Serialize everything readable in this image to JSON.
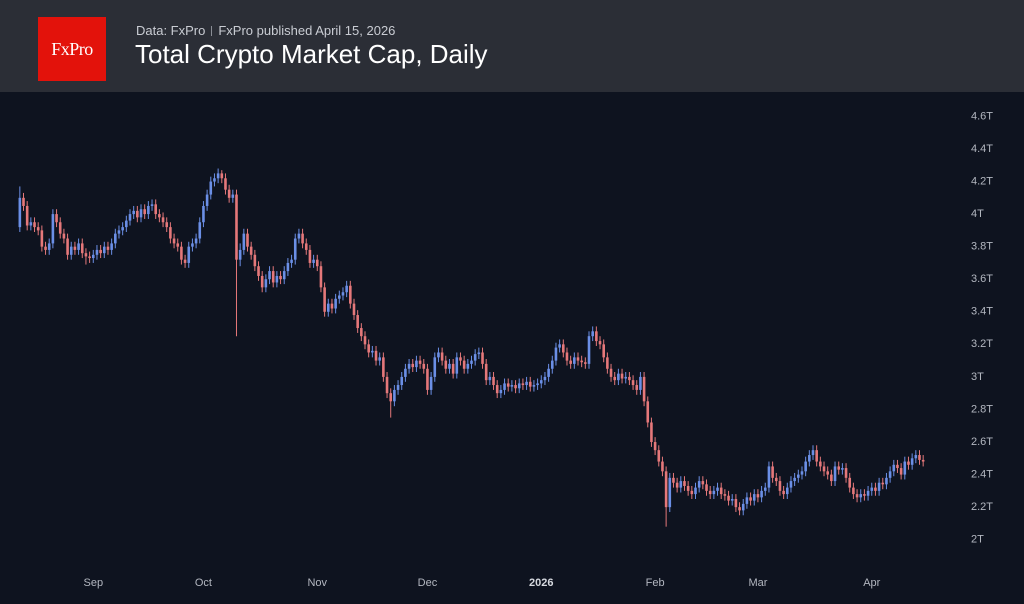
{
  "header": {
    "logo": "FxPro",
    "source": "Data: FxPro",
    "published": "FxPro published April 15, 2026",
    "title": "Total Crypto Market Cap, Daily"
  },
  "chart_data": {
    "type": "candlestick",
    "categories": [
      null,
      null,
      null,
      null,
      null,
      null,
      null,
      null,
      null,
      null,
      null,
      null,
      null,
      null,
      null,
      null,
      null,
      null,
      null,
      null,
      "Sep",
      null,
      null,
      null,
      null,
      null,
      null,
      null,
      null,
      null,
      null,
      null,
      null,
      null,
      null,
      null,
      null,
      null,
      null,
      null,
      null,
      null,
      null,
      null,
      null,
      null,
      null,
      null,
      null,
      null,
      "Oct",
      null,
      null,
      null,
      null,
      null,
      null,
      null,
      null,
      null,
      null,
      null,
      null,
      null,
      null,
      null,
      null,
      null,
      null,
      null,
      null,
      null,
      null,
      null,
      null,
      null,
      null,
      null,
      null,
      null,
      null,
      "Nov",
      null,
      null,
      null,
      null,
      null,
      null,
      null,
      null,
      null,
      null,
      null,
      null,
      null,
      null,
      null,
      null,
      null,
      null,
      null,
      null,
      null,
      null,
      null,
      null,
      null,
      null,
      null,
      null,
      null,
      "Dec",
      null,
      null,
      null,
      null,
      null,
      null,
      null,
      null,
      null,
      null,
      null,
      null,
      null,
      null,
      null,
      null,
      null,
      null,
      null,
      null,
      null,
      null,
      null,
      null,
      null,
      null,
      null,
      null,
      null,
      null,
      "2026",
      null,
      null,
      null,
      null,
      null,
      null,
      null,
      null,
      null,
      null,
      null,
      null,
      null,
      null,
      null,
      null,
      null,
      null,
      null,
      null,
      null,
      null,
      null,
      null,
      null,
      null,
      null,
      null,
      null,
      null,
      "Feb",
      null,
      null,
      null,
      null,
      null,
      null,
      null,
      null,
      null,
      null,
      null,
      null,
      null,
      null,
      null,
      null,
      null,
      null,
      null,
      null,
      null,
      null,
      null,
      null,
      null,
      null,
      null,
      "Mar",
      null,
      null,
      null,
      null,
      null,
      null,
      null,
      null,
      null,
      null,
      null,
      null,
      null,
      null,
      null,
      null,
      null,
      null,
      null,
      null,
      null,
      null,
      null,
      null,
      null,
      null,
      null,
      null,
      null,
      null,
      "Apr",
      null,
      null,
      null,
      null,
      null,
      null,
      null,
      null,
      null,
      null,
      null,
      null,
      null,
      null
    ],
    "open": [
      3.92,
      4.1,
      4.05,
      3.93,
      3.95,
      3.92,
      3.9,
      3.8,
      3.78,
      3.82,
      4.0,
      3.95,
      3.88,
      3.85,
      3.75,
      3.8,
      3.78,
      3.82,
      3.76,
      3.74,
      3.73,
      3.75,
      3.78,
      3.76,
      3.8,
      3.78,
      3.82,
      3.88,
      3.9,
      3.92,
      3.96,
      4.0,
      4.02,
      3.98,
      4.03,
      4.0,
      4.05,
      4.06,
      4.0,
      3.98,
      3.95,
      3.92,
      3.85,
      3.82,
      3.8,
      3.72,
      3.7,
      3.8,
      3.82,
      3.85,
      3.95,
      4.05,
      4.12,
      4.2,
      4.22,
      4.25,
      4.22,
      4.15,
      4.1,
      4.12,
      3.72,
      3.78,
      3.88,
      3.8,
      3.75,
      3.68,
      3.62,
      3.55,
      3.6,
      3.65,
      3.58,
      3.62,
      3.6,
      3.65,
      3.7,
      3.72,
      3.85,
      3.88,
      3.82,
      3.78,
      3.7,
      3.72,
      3.68,
      3.55,
      3.4,
      3.45,
      3.42,
      3.48,
      3.5,
      3.52,
      3.56,
      3.45,
      3.38,
      3.3,
      3.25,
      3.2,
      3.15,
      3.16,
      3.1,
      3.12,
      3.0,
      2.9,
      2.85,
      2.92,
      2.95,
      3.0,
      3.05,
      3.08,
      3.06,
      3.1,
      3.08,
      3.05,
      2.92,
      3.0,
      3.12,
      3.15,
      3.1,
      3.05,
      3.08,
      3.02,
      3.12,
      3.1,
      3.05,
      3.08,
      3.1,
      3.14,
      3.15,
      3.08,
      2.98,
      3.0,
      2.95,
      2.9,
      2.92,
      2.96,
      2.94,
      2.95,
      2.93,
      2.96,
      2.95,
      2.97,
      2.94,
      2.95,
      2.96,
      2.98,
      3.0,
      3.05,
      3.1,
      3.18,
      3.2,
      3.15,
      3.1,
      3.08,
      3.12,
      3.1,
      3.09,
      3.08,
      3.25,
      3.28,
      3.22,
      3.2,
      3.12,
      3.05,
      3.0,
      2.98,
      3.02,
      2.99,
      3.0,
      2.98,
      2.95,
      2.92,
      3.0,
      2.85,
      2.72,
      2.6,
      2.55,
      2.48,
      2.42,
      2.2,
      2.38,
      2.35,
      2.32,
      2.36,
      2.33,
      2.3,
      2.28,
      2.32,
      2.36,
      2.34,
      2.3,
      2.28,
      2.3,
      2.32,
      2.28,
      2.27,
      2.24,
      2.25,
      2.2,
      2.18,
      2.22,
      2.26,
      2.24,
      2.28,
      2.26,
      2.3,
      2.32,
      2.45,
      2.38,
      2.36,
      2.3,
      2.28,
      2.32,
      2.36,
      2.38,
      2.4,
      2.42,
      2.48,
      2.52,
      2.55,
      2.48,
      2.45,
      2.42,
      2.4,
      2.36,
      2.45,
      2.43,
      2.44,
      2.38,
      2.32,
      2.28,
      2.26,
      2.28,
      2.27,
      2.3,
      2.32,
      2.3,
      2.35,
      2.34,
      2.38,
      2.42,
      2.46,
      2.44,
      2.4,
      2.48,
      2.46,
      2.5,
      2.52,
      2.49
    ],
    "high": [
      4.17,
      4.13,
      4.08,
      3.98,
      3.98,
      3.95,
      3.93,
      3.83,
      3.85,
      4.03,
      4.03,
      3.98,
      3.91,
      3.88,
      3.83,
      3.83,
      3.85,
      3.85,
      3.79,
      3.77,
      3.78,
      3.81,
      3.81,
      3.83,
      3.83,
      3.85,
      3.91,
      3.93,
      3.95,
      3.99,
      4.03,
      4.05,
      4.05,
      4.06,
      4.06,
      4.08,
      4.09,
      4.09,
      4.03,
      4.01,
      3.98,
      3.95,
      3.88,
      3.85,
      3.83,
      3.75,
      3.83,
      3.85,
      3.88,
      3.98,
      4.08,
      4.15,
      4.23,
      4.25,
      4.28,
      4.27,
      4.25,
      4.18,
      4.15,
      4.15,
      3.82,
      3.91,
      3.91,
      3.83,
      3.78,
      3.71,
      3.65,
      3.63,
      3.68,
      3.68,
      3.65,
      3.65,
      3.68,
      3.73,
      3.75,
      3.88,
      3.91,
      3.91,
      3.85,
      3.81,
      3.75,
      3.75,
      3.71,
      3.58,
      3.48,
      3.48,
      3.51,
      3.53,
      3.55,
      3.59,
      3.59,
      3.48,
      3.41,
      3.33,
      3.28,
      3.23,
      3.19,
      3.19,
      3.15,
      3.15,
      3.03,
      2.93,
      2.95,
      2.98,
      3.03,
      3.08,
      3.11,
      3.11,
      3.13,
      3.13,
      3.11,
      3.08,
      3.03,
      3.15,
      3.18,
      3.18,
      3.13,
      3.11,
      3.11,
      3.15,
      3.15,
      3.13,
      3.11,
      3.13,
      3.17,
      3.18,
      3.18,
      3.11,
      3.03,
      3.03,
      2.98,
      2.95,
      2.99,
      2.99,
      2.98,
      2.98,
      2.99,
      2.99,
      3.0,
      3.0,
      2.98,
      2.99,
      3.01,
      3.03,
      3.08,
      3.13,
      3.21,
      3.23,
      3.23,
      3.18,
      3.13,
      3.15,
      3.15,
      3.13,
      3.12,
      3.28,
      3.31,
      3.31,
      3.25,
      3.23,
      3.15,
      3.08,
      3.03,
      3.05,
      3.05,
      3.03,
      3.03,
      3.01,
      2.98,
      3.03,
      3.03,
      2.88,
      2.75,
      2.63,
      2.58,
      2.51,
      2.45,
      2.41,
      2.41,
      2.38,
      2.39,
      2.39,
      2.36,
      2.33,
      2.35,
      2.39,
      2.39,
      2.37,
      2.33,
      2.33,
      2.35,
      2.35,
      2.31,
      2.3,
      2.28,
      2.28,
      2.23,
      2.25,
      2.29,
      2.29,
      2.31,
      2.31,
      2.33,
      2.35,
      2.48,
      2.48,
      2.41,
      2.39,
      2.33,
      2.35,
      2.39,
      2.41,
      2.43,
      2.45,
      2.51,
      2.55,
      2.58,
      2.58,
      2.51,
      2.48,
      2.45,
      2.43,
      2.48,
      2.48,
      2.47,
      2.47,
      2.41,
      2.35,
      2.31,
      2.31,
      2.31,
      2.33,
      2.35,
      2.35,
      2.38,
      2.38,
      2.41,
      2.45,
      2.49,
      2.49,
      2.47,
      2.51,
      2.51,
      2.53,
      2.55,
      2.55,
      2.52
    ],
    "low": [
      3.89,
      4.02,
      3.9,
      3.9,
      3.89,
      3.87,
      3.77,
      3.75,
      3.75,
      3.79,
      3.92,
      3.85,
      3.82,
      3.72,
      3.72,
      3.75,
      3.75,
      3.73,
      3.69,
      3.7,
      3.7,
      3.72,
      3.73,
      3.73,
      3.75,
      3.75,
      3.79,
      3.85,
      3.87,
      3.89,
      3.93,
      3.97,
      3.95,
      3.95,
      3.97,
      3.97,
      4.02,
      3.97,
      3.95,
      3.92,
      3.89,
      3.82,
      3.79,
      3.77,
      3.69,
      3.67,
      3.67,
      3.77,
      3.79,
      3.82,
      3.92,
      4.02,
      4.09,
      4.17,
      4.19,
      4.19,
      4.12,
      4.07,
      4.07,
      3.25,
      3.68,
      3.75,
      3.77,
      3.72,
      3.65,
      3.59,
      3.52,
      3.52,
      3.57,
      3.55,
      3.55,
      3.57,
      3.57,
      3.62,
      3.67,
      3.69,
      3.82,
      3.79,
      3.75,
      3.67,
      3.67,
      3.65,
      3.52,
      3.37,
      3.37,
      3.39,
      3.39,
      3.45,
      3.47,
      3.49,
      3.42,
      3.35,
      3.27,
      3.22,
      3.17,
      3.12,
      3.12,
      3.07,
      3.07,
      2.97,
      2.87,
      2.75,
      2.82,
      2.89,
      2.92,
      2.97,
      3.02,
      3.03,
      3.03,
      3.05,
      3.02,
      2.89,
      2.89,
      2.97,
      3.09,
      3.07,
      3.02,
      3.02,
      2.99,
      2.99,
      3.07,
      3.02,
      3.02,
      3.05,
      3.07,
      3.11,
      3.05,
      2.95,
      2.95,
      2.92,
      2.87,
      2.87,
      2.89,
      2.91,
      2.91,
      2.9,
      2.9,
      2.92,
      2.92,
      2.91,
      2.91,
      2.92,
      2.93,
      2.95,
      2.97,
      3.02,
      3.07,
      3.15,
      3.12,
      3.07,
      3.05,
      3.05,
      3.07,
      3.06,
      3.05,
      3.05,
      3.22,
      3.19,
      3.17,
      3.09,
      3.02,
      2.97,
      2.95,
      2.95,
      2.96,
      2.96,
      2.95,
      2.92,
      2.89,
      2.89,
      2.82,
      2.69,
      2.57,
      2.52,
      2.45,
      2.39,
      2.08,
      2.17,
      2.32,
      2.29,
      2.29,
      2.3,
      2.27,
      2.25,
      2.25,
      2.29,
      2.31,
      2.27,
      2.25,
      2.25,
      2.27,
      2.25,
      2.24,
      2.21,
      2.21,
      2.17,
      2.15,
      2.15,
      2.19,
      2.21,
      2.21,
      2.23,
      2.23,
      2.27,
      2.29,
      2.35,
      2.33,
      2.27,
      2.25,
      2.25,
      2.29,
      2.33,
      2.35,
      2.37,
      2.39,
      2.45,
      2.49,
      2.45,
      2.42,
      2.39,
      2.37,
      2.33,
      2.33,
      2.4,
      2.4,
      2.35,
      2.29,
      2.25,
      2.23,
      2.23,
      2.24,
      2.24,
      2.27,
      2.27,
      2.27,
      2.31,
      2.31,
      2.35,
      2.39,
      2.41,
      2.37,
      2.37,
      2.43,
      2.43,
      2.47,
      2.46,
      2.45
    ],
    "close": [
      4.1,
      4.05,
      3.93,
      3.95,
      3.92,
      3.9,
      3.8,
      3.78,
      3.82,
      4.0,
      3.95,
      3.88,
      3.85,
      3.75,
      3.8,
      3.78,
      3.82,
      3.76,
      3.74,
      3.73,
      3.75,
      3.78,
      3.76,
      3.8,
      3.78,
      3.82,
      3.88,
      3.9,
      3.92,
      3.96,
      4.0,
      4.02,
      3.98,
      4.03,
      4.0,
      4.05,
      4.06,
      4.0,
      3.98,
      3.95,
      3.92,
      3.85,
      3.82,
      3.8,
      3.72,
      3.7,
      3.8,
      3.82,
      3.85,
      3.95,
      4.05,
      4.12,
      4.2,
      4.22,
      4.25,
      4.22,
      4.15,
      4.1,
      4.12,
      3.72,
      3.78,
      3.88,
      3.8,
      3.75,
      3.68,
      3.62,
      3.55,
      3.6,
      3.65,
      3.58,
      3.62,
      3.6,
      3.65,
      3.7,
      3.72,
      3.85,
      3.88,
      3.82,
      3.78,
      3.7,
      3.72,
      3.68,
      3.55,
      3.4,
      3.45,
      3.42,
      3.48,
      3.5,
      3.52,
      3.56,
      3.45,
      3.38,
      3.3,
      3.25,
      3.2,
      3.15,
      3.16,
      3.1,
      3.12,
      3.0,
      2.9,
      2.85,
      2.92,
      2.95,
      3.0,
      3.05,
      3.08,
      3.06,
      3.1,
      3.08,
      3.05,
      2.92,
      3.0,
      3.12,
      3.15,
      3.1,
      3.05,
      3.08,
      3.02,
      3.12,
      3.1,
      3.05,
      3.08,
      3.1,
      3.14,
      3.15,
      3.08,
      2.98,
      3.0,
      2.95,
      2.9,
      2.92,
      2.96,
      2.94,
      2.95,
      2.93,
      2.96,
      2.95,
      2.97,
      2.94,
      2.95,
      2.96,
      2.98,
      3.0,
      3.05,
      3.1,
      3.18,
      3.2,
      3.15,
      3.1,
      3.08,
      3.12,
      3.1,
      3.09,
      3.08,
      3.25,
      3.28,
      3.22,
      3.2,
      3.12,
      3.05,
      3.0,
      2.98,
      3.02,
      2.99,
      3.0,
      2.98,
      2.95,
      2.92,
      3.0,
      2.85,
      2.72,
      2.6,
      2.55,
      2.48,
      2.42,
      2.2,
      2.38,
      2.35,
      2.32,
      2.36,
      2.33,
      2.3,
      2.28,
      2.32,
      2.36,
      2.34,
      2.3,
      2.28,
      2.3,
      2.32,
      2.28,
      2.27,
      2.24,
      2.25,
      2.2,
      2.18,
      2.22,
      2.26,
      2.24,
      2.28,
      2.26,
      2.3,
      2.32,
      2.45,
      2.38,
      2.36,
      2.3,
      2.28,
      2.32,
      2.36,
      2.38,
      2.4,
      2.42,
      2.48,
      2.52,
      2.55,
      2.48,
      2.45,
      2.42,
      2.4,
      2.36,
      2.45,
      2.43,
      2.44,
      2.38,
      2.32,
      2.28,
      2.26,
      2.28,
      2.27,
      2.3,
      2.32,
      2.3,
      2.35,
      2.34,
      2.38,
      2.42,
      2.46,
      2.44,
      2.4,
      2.48,
      2.46,
      2.5,
      2.52,
      2.49,
      2.48
    ],
    "up_color": "#6b8fe6",
    "down_color": "#e5787a",
    "ylim": [
      1.82,
      4.75
    ],
    "yticks": [
      {
        "value": 2,
        "label": "2T"
      },
      {
        "value": 2.2,
        "label": "2.2T"
      },
      {
        "value": 2.4,
        "label": "2.4T"
      },
      {
        "value": 2.6,
        "label": "2.6T"
      },
      {
        "value": 2.8,
        "label": "2.8T"
      },
      {
        "value": 3,
        "label": "3T"
      },
      {
        "value": 3.2,
        "label": "3.2T"
      },
      {
        "value": 3.4,
        "label": "3.4T"
      },
      {
        "value": 3.6,
        "label": "3.6T"
      },
      {
        "value": 3.8,
        "label": "3.8T"
      },
      {
        "value": 4,
        "label": "4T"
      },
      {
        "value": 4.2,
        "label": "4.2T"
      },
      {
        "value": 4.4,
        "label": "4.4T"
      },
      {
        "value": 4.6,
        "label": "4.6T"
      }
    ],
    "grid": false
  }
}
